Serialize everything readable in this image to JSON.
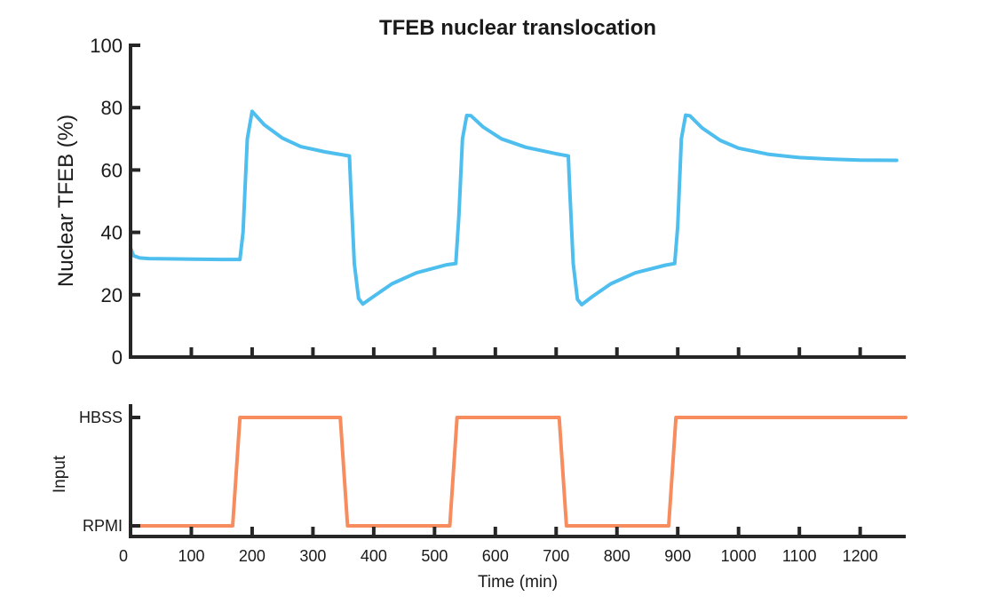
{
  "chart_data": [
    {
      "type": "line",
      "title": "TFEB nuclear translocation",
      "ylabel": "Nuclear TFEB (%)",
      "xlim": [
        0,
        1275
      ],
      "ylim": [
        0,
        100
      ],
      "yticks": [
        0,
        20,
        40,
        60,
        80,
        100
      ],
      "xticks": [
        0,
        100,
        200,
        300,
        400,
        500,
        600,
        700,
        800,
        900,
        1000,
        1100,
        1200
      ],
      "grid": false,
      "series": [
        {
          "color": "#4DBEEE",
          "x": [
            0,
            5,
            15,
            30,
            60,
            100,
            150,
            180,
            185,
            192,
            200,
            220,
            250,
            280,
            320,
            360,
            362,
            368,
            375,
            382,
            400,
            430,
            470,
            520,
            535,
            540,
            546,
            553,
            560,
            580,
            610,
            650,
            700,
            720,
            722,
            728,
            735,
            742,
            760,
            790,
            830,
            880,
            895,
            900,
            906,
            913,
            920,
            940,
            970,
            1000,
            1050,
            1100,
            1150,
            1200,
            1260
          ],
          "values": [
            35,
            32.5,
            31.8,
            31.6,
            31.5,
            31.4,
            31.3,
            31.3,
            40,
            70,
            78.8,
            74.5,
            70.2,
            67.5,
            65.8,
            64.5,
            55,
            30,
            18.8,
            17,
            19.5,
            23.5,
            27,
            29.6,
            30,
            45,
            70,
            77.5,
            77.4,
            73.8,
            70,
            67.3,
            65.2,
            64.5,
            55,
            30,
            18.5,
            16.8,
            19.5,
            23.5,
            27,
            29.5,
            30,
            42,
            70,
            77.6,
            77.4,
            73.5,
            69.5,
            67,
            65,
            64,
            63.5,
            63.2,
            63.1
          ]
        }
      ]
    },
    {
      "type": "line",
      "ylabel": "Input",
      "xlabel": "Time (min)",
      "xlim": [
        0,
        1275
      ],
      "ylim": [
        0,
        1
      ],
      "yticks": [
        0,
        1
      ],
      "ytick_labels": [
        "RPMI",
        "HBSS"
      ],
      "xticks": [
        0,
        100,
        200,
        300,
        400,
        500,
        600,
        700,
        800,
        900,
        1000,
        1100,
        1200
      ],
      "grid": false,
      "series": [
        {
          "color": "#F78C5E",
          "x": [
            0,
            168,
            180,
            345,
            357,
            525,
            537,
            705,
            717,
            885,
            897,
            1275
          ],
          "values": [
            0,
            0,
            1,
            1,
            0,
            0,
            1,
            1,
            0,
            0,
            1,
            1
          ]
        }
      ]
    }
  ]
}
